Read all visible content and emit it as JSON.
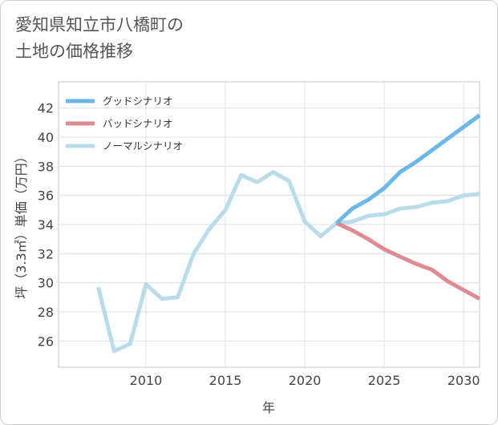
{
  "title": "愛知県知立市八橋町の\n土地の価格推移",
  "chart_data": {
    "type": "line",
    "title": "愛知県知立市八橋町の土地の価格推移",
    "xlabel": "年",
    "ylabel": "坪（3.3㎡）単価（万円）",
    "xlim": [
      2004.5,
      2031
    ],
    "ylim": [
      24.2,
      43.8
    ],
    "xticks": [
      2010,
      2015,
      2020,
      2025,
      2030
    ],
    "yticks": [
      26,
      28,
      30,
      32,
      34,
      36,
      38,
      40,
      42
    ],
    "grid": true,
    "legend_position": "top-left",
    "series": [
      {
        "name": "グッドシナリオ",
        "color": "#6ab7ea",
        "x": [
          2022,
          2023,
          2024,
          2025,
          2026,
          2027,
          2028,
          2029,
          2030,
          2031
        ],
        "y": [
          34.1,
          35.1,
          35.7,
          36.5,
          37.6,
          38.3,
          39.1,
          39.9,
          40.7,
          41.5
        ]
      },
      {
        "name": "バッドシナリオ",
        "color": "#e08a92",
        "x": [
          2022,
          2023,
          2024,
          2025,
          2026,
          2027,
          2028,
          2029,
          2030,
          2031
        ],
        "y": [
          34.1,
          33.6,
          33.0,
          32.3,
          31.8,
          31.3,
          30.9,
          30.1,
          29.5,
          28.9
        ]
      },
      {
        "name": "ノーマルシナリオ",
        "color": "#b9dceb",
        "x": [
          2007,
          2008,
          2009,
          2010,
          2011,
          2012,
          2013,
          2014,
          2015,
          2016,
          2017,
          2018,
          2019,
          2020,
          2021,
          2022,
          2023,
          2024,
          2025,
          2026,
          2027,
          2028,
          2029,
          2030,
          2031
        ],
        "y": [
          29.7,
          25.3,
          25.8,
          29.9,
          28.9,
          29.0,
          32.0,
          33.7,
          35.0,
          37.4,
          36.9,
          37.6,
          37.0,
          34.2,
          33.2,
          34.1,
          34.2,
          34.6,
          34.7,
          35.1,
          35.2,
          35.5,
          35.6,
          36.0,
          36.1
        ]
      }
    ]
  }
}
